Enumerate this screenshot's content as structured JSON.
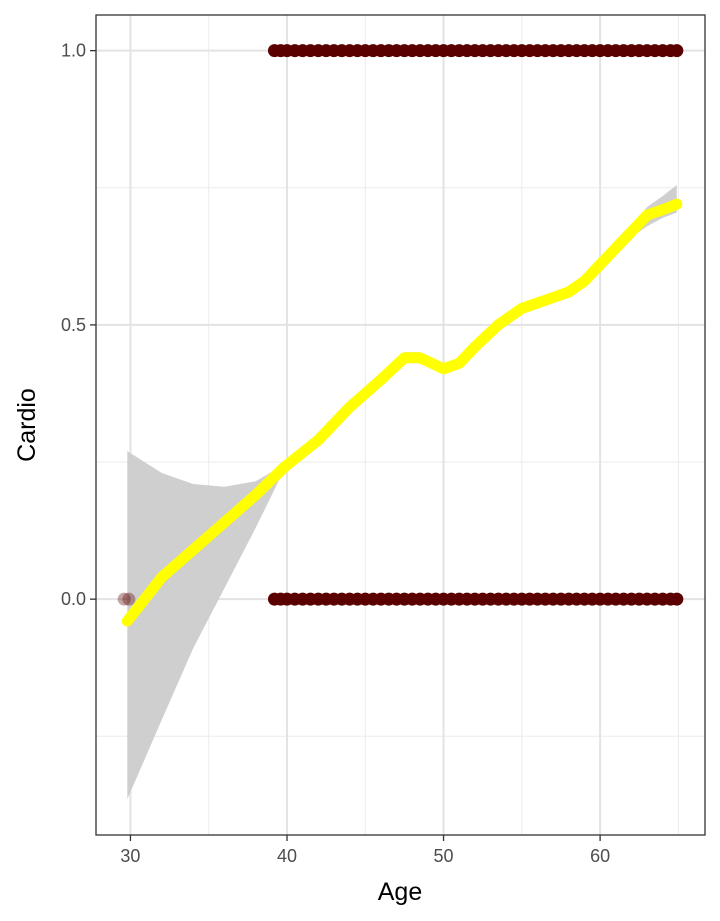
{
  "chart_data": {
    "type": "scatter",
    "xlabel": "Age",
    "ylabel": "Cardio",
    "xlim": [
      27.8,
      66.7
    ],
    "ylim": [
      -0.43,
      1.065
    ],
    "x_ticks": [
      30,
      40,
      50,
      60
    ],
    "x_minor_ticks": [
      35,
      45,
      55,
      65
    ],
    "y_ticks": [
      0.0,
      0.5,
      1.0
    ],
    "y_tick_labels": [
      "0.0",
      "0.5",
      "1.0"
    ],
    "y_minor_ticks": [
      -0.25,
      0.25,
      0.75
    ],
    "grid": true,
    "points": {
      "color": "#5a0000",
      "cardio_0_ages": [
        29.6,
        29.9,
        39.2,
        39.6,
        40,
        40.5,
        41,
        41.5,
        42,
        42.5,
        43,
        43.5,
        44,
        44.5,
        45,
        45.5,
        46,
        46.5,
        47,
        47.5,
        48,
        48.5,
        49,
        49.5,
        50,
        50.5,
        51,
        51.5,
        52,
        52.5,
        53,
        53.5,
        54,
        54.5,
        55,
        55.5,
        56,
        56.5,
        57,
        57.5,
        58,
        58.5,
        59,
        59.5,
        60,
        60.5,
        61,
        61.5,
        62,
        62.5,
        63,
        63.5,
        64,
        64.5,
        64.9
      ],
      "cardio_1_ages": [
        39.2,
        39.6,
        40,
        40.5,
        41,
        41.5,
        42,
        42.5,
        43,
        43.5,
        44,
        44.5,
        45,
        45.5,
        46,
        46.5,
        47,
        47.5,
        48,
        48.5,
        49,
        49.5,
        50,
        50.5,
        51,
        51.5,
        52,
        52.5,
        53,
        53.5,
        54,
        54.5,
        55,
        55.5,
        56,
        56.5,
        57,
        57.5,
        58,
        58.5,
        59,
        59.5,
        60,
        60.5,
        61,
        61.5,
        62,
        62.5,
        63,
        63.5,
        64,
        64.5,
        64.9
      ]
    },
    "smooth": {
      "color": "#ffff00",
      "ribbon_color": "#cccccc",
      "x": [
        29.8,
        32,
        34,
        36,
        38,
        39.8,
        42,
        44,
        46,
        47.5,
        48.5,
        50,
        51,
        52,
        53.5,
        55,
        56,
        57,
        58,
        59,
        60,
        61,
        62,
        63,
        64,
        64.9
      ],
      "y": [
        -0.04,
        0.04,
        0.09,
        0.14,
        0.19,
        0.24,
        0.29,
        0.35,
        0.4,
        0.44,
        0.44,
        0.42,
        0.43,
        0.46,
        0.5,
        0.53,
        0.54,
        0.55,
        0.56,
        0.58,
        0.61,
        0.64,
        0.67,
        0.7,
        0.71,
        0.72
      ],
      "lower": [
        -0.365,
        -0.22,
        -0.09,
        0.02,
        0.13,
        0.235,
        0.285,
        0.345,
        0.395,
        0.43,
        0.43,
        0.415,
        0.42,
        0.45,
        0.49,
        0.52,
        0.53,
        0.54,
        0.55,
        0.57,
        0.6,
        0.63,
        0.66,
        0.68,
        0.695,
        0.705
      ],
      "upper": [
        0.27,
        0.23,
        0.21,
        0.205,
        0.215,
        0.245,
        0.295,
        0.355,
        0.405,
        0.45,
        0.45,
        0.425,
        0.44,
        0.47,
        0.51,
        0.54,
        0.55,
        0.56,
        0.57,
        0.59,
        0.62,
        0.65,
        0.68,
        0.715,
        0.735,
        0.755
      ]
    }
  }
}
